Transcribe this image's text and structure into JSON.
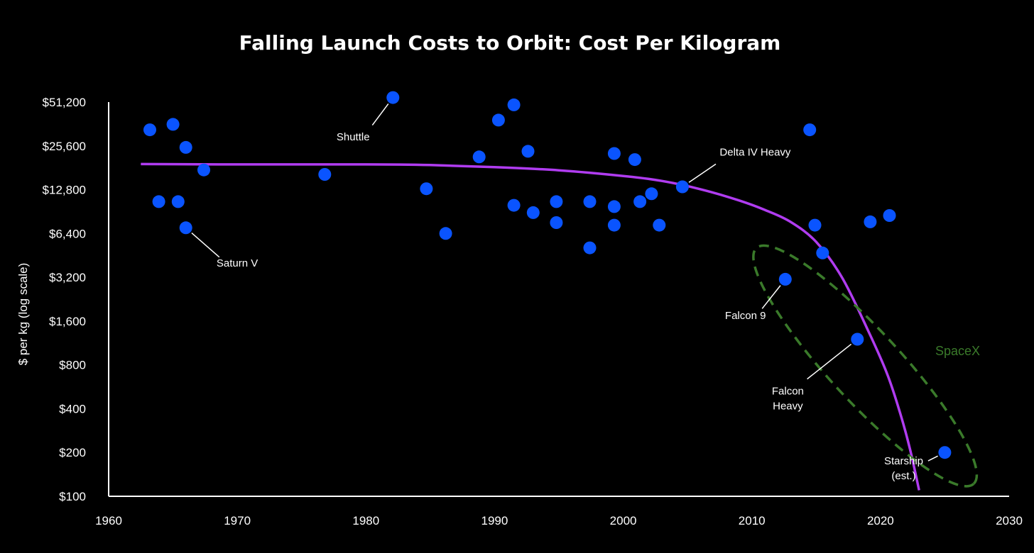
{
  "chart_data": {
    "type": "scatter",
    "title": "Falling Launch Costs to Orbit: Cost Per Kilogram",
    "xlabel": "",
    "ylabel": "$ per kg (log scale)",
    "xlim": [
      1960,
      2030
    ],
    "ylim": [
      100,
      51200
    ],
    "y_scale": "log2",
    "x_ticks": [
      "1960",
      "1970",
      "1980",
      "1990",
      "2000",
      "2010",
      "2020",
      "2030"
    ],
    "y_ticks": [
      {
        "value": 51200,
        "label": "$51,200"
      },
      {
        "value": 25600,
        "label": "$25,600"
      },
      {
        "value": 12800,
        "label": "$12,800"
      },
      {
        "value": 6400,
        "label": "$6,400"
      },
      {
        "value": 3200,
        "label": "$3,200"
      },
      {
        "value": 1600,
        "label": "$1,600"
      },
      {
        "value": 800,
        "label": "$800"
      },
      {
        "value": 400,
        "label": "$400"
      },
      {
        "value": 200,
        "label": "$200"
      },
      {
        "value": 100,
        "label": "$100"
      }
    ],
    "grid": false,
    "point_color": "#0a54ff",
    "trend_color": "#b03cf0",
    "spacex_color": "#3a7a2a",
    "points": [
      {
        "x": 1963.2,
        "y": 33000
      },
      {
        "x": 1963.9,
        "y": 10600
      },
      {
        "x": 1965.0,
        "y": 36000
      },
      {
        "x": 1965.4,
        "y": 10600
      },
      {
        "x": 1966.0,
        "y": 25000
      },
      {
        "x": 1966.0,
        "y": 7000
      },
      {
        "x": 1967.4,
        "y": 17500
      },
      {
        "x": 1976.8,
        "y": 16300
      },
      {
        "x": 1982.1,
        "y": 55000
      },
      {
        "x": 1984.7,
        "y": 13000
      },
      {
        "x": 1986.2,
        "y": 6400
      },
      {
        "x": 1988.8,
        "y": 21500
      },
      {
        "x": 1990.3,
        "y": 38500
      },
      {
        "x": 1991.5,
        "y": 49000
      },
      {
        "x": 1991.5,
        "y": 10000
      },
      {
        "x": 1992.6,
        "y": 23500
      },
      {
        "x": 1993.0,
        "y": 8900
      },
      {
        "x": 1994.8,
        "y": 10600
      },
      {
        "x": 1994.8,
        "y": 7600
      },
      {
        "x": 1997.4,
        "y": 10600
      },
      {
        "x": 1997.4,
        "y": 5100
      },
      {
        "x": 1999.3,
        "y": 22700
      },
      {
        "x": 1999.3,
        "y": 9800
      },
      {
        "x": 1999.3,
        "y": 7300
      },
      {
        "x": 2000.9,
        "y": 20600
      },
      {
        "x": 2001.3,
        "y": 10600
      },
      {
        "x": 2002.2,
        "y": 12000
      },
      {
        "x": 2002.8,
        "y": 7300
      },
      {
        "x": 2004.6,
        "y": 13400
      },
      {
        "x": 2014.5,
        "y": 33000
      },
      {
        "x": 2014.9,
        "y": 7300
      },
      {
        "x": 2015.5,
        "y": 4700
      },
      {
        "x": 2012.6,
        "y": 3100
      },
      {
        "x": 2018.2,
        "y": 1200
      },
      {
        "x": 2019.2,
        "y": 7700
      },
      {
        "x": 2020.7,
        "y": 8500
      },
      {
        "x": 2025.0,
        "y": 200
      }
    ],
    "trend": {
      "x": [
        1962.5,
        1970,
        1980,
        1985,
        1990,
        1995,
        2000,
        2003,
        2006,
        2009,
        2011,
        2013,
        2015,
        2017,
        2019,
        2020.5,
        2021.5,
        2022.3,
        2023.0
      ],
      "y": [
        19200,
        19100,
        19100,
        18900,
        18300,
        17400,
        15900,
        14700,
        12900,
        10800,
        9300,
        7700,
        5600,
        3200,
        1400,
        700,
        380,
        210,
        110
      ]
    },
    "annotations": [
      {
        "label": "Shuttle",
        "lines": [
          "Shuttle"
        ],
        "point": [
          1982.1,
          55000
        ],
        "text_pos": [
          1979.0,
          28000
        ],
        "anchor": "middle",
        "leader_from": [
          1980.5,
          35500
        ]
      },
      {
        "label": "Saturn V",
        "lines": [
          "Saturn V"
        ],
        "point": [
          1966.0,
          7000
        ],
        "text_pos": [
          1970.0,
          3800
        ],
        "anchor": "middle",
        "leader_from": [
          1968.6,
          4400
        ]
      },
      {
        "label": "Delta IV Heavy",
        "lines": [
          "Delta IV Heavy"
        ],
        "point": [
          2004.6,
          13400
        ],
        "text_pos": [
          2007.5,
          22000
        ],
        "anchor": "start",
        "leader_from": [
          2007.2,
          19200
        ]
      },
      {
        "label": "Falcon 9",
        "lines": [
          "Falcon 9"
        ],
        "point": [
          2012.6,
          3100
        ],
        "text_pos": [
          2009.5,
          1650
        ],
        "anchor": "middle",
        "leader_from": [
          2010.8,
          1950
        ]
      },
      {
        "label": "Falcon Heavy",
        "lines": [
          "Falcon",
          "Heavy"
        ],
        "point": [
          2018.2,
          1200
        ],
        "text_pos": [
          2012.8,
          500
        ],
        "anchor": "middle",
        "leader_from": [
          2014.3,
          640
        ]
      },
      {
        "label": "Starship (est.)",
        "lines": [
          "Starship",
          "(est.)"
        ],
        "point": [
          2025.0,
          200
        ],
        "text_pos": [
          2021.8,
          166
        ],
        "anchor": "middle",
        "leader_from": [
          2023.7,
          175
        ]
      }
    ],
    "group_label": "SpaceX",
    "group_label_pos": [
      2026.0,
      1000
    ]
  }
}
